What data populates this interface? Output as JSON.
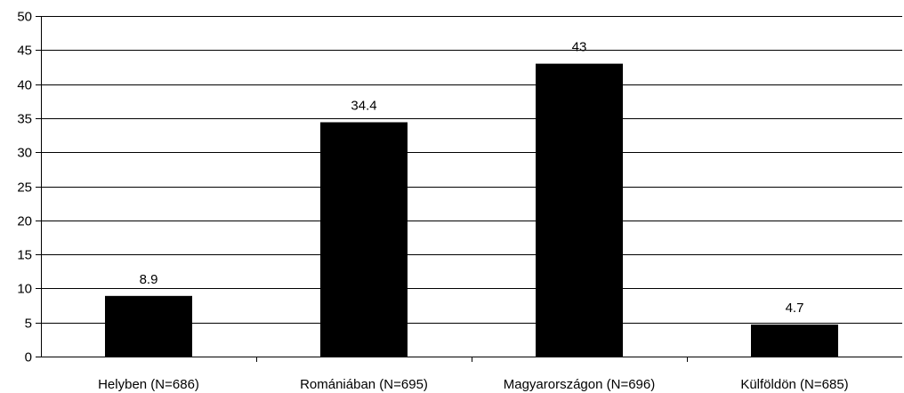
{
  "chart_data": {
    "type": "bar",
    "title": "",
    "xlabel": "",
    "ylabel": "",
    "categories": [
      "Helyben (N=686)",
      "Romániában (N=695)",
      "Magyarországon (N=696)",
      "Külföldön (N=685)"
    ],
    "values": [
      8.9,
      34.4,
      43,
      4.7
    ],
    "data_labels": [
      "8.9",
      "34.4",
      "43",
      "4.7"
    ],
    "ylim": [
      0,
      50
    ],
    "yticks": [
      0,
      5,
      10,
      15,
      20,
      25,
      30,
      35,
      40,
      45,
      50
    ],
    "grid": true,
    "legend": "none",
    "bar_color": "#000000"
  }
}
